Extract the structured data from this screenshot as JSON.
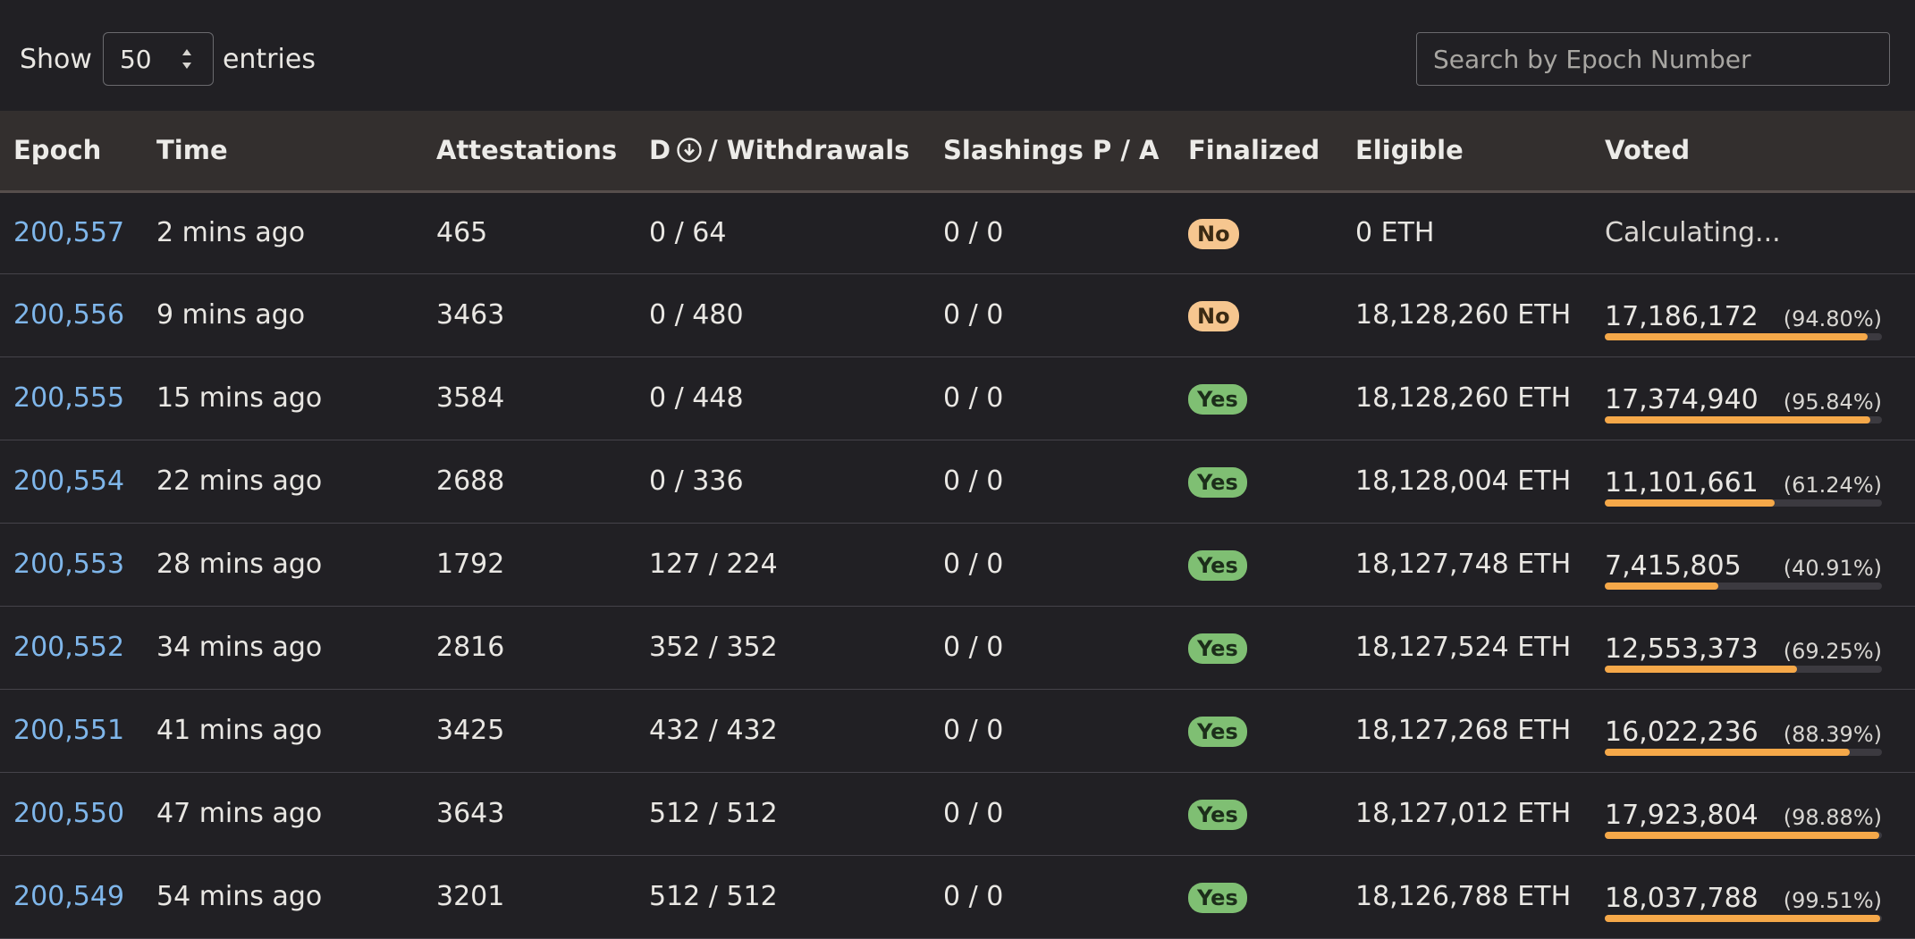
{
  "controls": {
    "show_label": "Show",
    "entries_value": "50",
    "entries_label": "entries",
    "search_placeholder": "Search by Epoch Number"
  },
  "table": {
    "headers": {
      "epoch": "Epoch",
      "time": "Time",
      "attestations": "Attestations",
      "deposits_prefix": "D",
      "withdrawals_suffix": "/ Withdrawals",
      "slashings": "Slashings P / A",
      "finalized": "Finalized",
      "eligible": "Eligible",
      "voted": "Voted"
    },
    "rows": [
      {
        "epoch": "200,557",
        "time": "2 mins ago",
        "attestations": "465",
        "dw": "0 / 64",
        "slashings": "0 / 0",
        "finalized": "No",
        "eligible": "0 ETH",
        "voted": "Calculating...",
        "voted_pct": "",
        "fill": 0
      },
      {
        "epoch": "200,556",
        "time": "9 mins ago",
        "attestations": "3463",
        "dw": "0 / 480",
        "slashings": "0 / 0",
        "finalized": "No",
        "eligible": "18,128,260 ETH",
        "voted": "17,186,172",
        "voted_pct": "(94.80%)",
        "fill": 0.948
      },
      {
        "epoch": "200,555",
        "time": "15 mins ago",
        "attestations": "3584",
        "dw": "0 / 448",
        "slashings": "0 / 0",
        "finalized": "Yes",
        "eligible": "18,128,260 ETH",
        "voted": "17,374,940",
        "voted_pct": "(95.84%)",
        "fill": 0.9584
      },
      {
        "epoch": "200,554",
        "time": "22 mins ago",
        "attestations": "2688",
        "dw": "0 / 336",
        "slashings": "0 / 0",
        "finalized": "Yes",
        "eligible": "18,128,004 ETH",
        "voted": "11,101,661",
        "voted_pct": "(61.24%)",
        "fill": 0.6124
      },
      {
        "epoch": "200,553",
        "time": "28 mins ago",
        "attestations": "1792",
        "dw": "127 / 224",
        "slashings": "0 / 0",
        "finalized": "Yes",
        "eligible": "18,127,748 ETH",
        "voted": "7,415,805",
        "voted_pct": "(40.91%)",
        "fill": 0.4091
      },
      {
        "epoch": "200,552",
        "time": "34 mins ago",
        "attestations": "2816",
        "dw": "352 / 352",
        "slashings": "0 / 0",
        "finalized": "Yes",
        "eligible": "18,127,524 ETH",
        "voted": "12,553,373",
        "voted_pct": "(69.25%)",
        "fill": 0.6925
      },
      {
        "epoch": "200,551",
        "time": "41 mins ago",
        "attestations": "3425",
        "dw": "432 / 432",
        "slashings": "0 / 0",
        "finalized": "Yes",
        "eligible": "18,127,268 ETH",
        "voted": "16,022,236",
        "voted_pct": "(88.39%)",
        "fill": 0.8839
      },
      {
        "epoch": "200,550",
        "time": "47 mins ago",
        "attestations": "3643",
        "dw": "512 / 512",
        "slashings": "0 / 0",
        "finalized": "Yes",
        "eligible": "18,127,012 ETH",
        "voted": "17,923,804",
        "voted_pct": "(98.88%)",
        "fill": 0.9888
      },
      {
        "epoch": "200,549",
        "time": "54 mins ago",
        "attestations": "3201",
        "dw": "512 / 512",
        "slashings": "0 / 0",
        "finalized": "Yes",
        "eligible": "18,126,788 ETH",
        "voted": "18,037,788",
        "voted_pct": "(99.51%)",
        "fill": 0.9951
      }
    ]
  },
  "colors": {
    "background": "#212024",
    "header_bg": "#332f2e",
    "link": "#7fb6ea",
    "badge_no": "#f6c68f",
    "badge_yes": "#7fbf73",
    "progress_fill": "#f5a849"
  },
  "icons": {
    "deposit": "download-circle-icon",
    "select_arrows": "updown-arrows-icon"
  }
}
